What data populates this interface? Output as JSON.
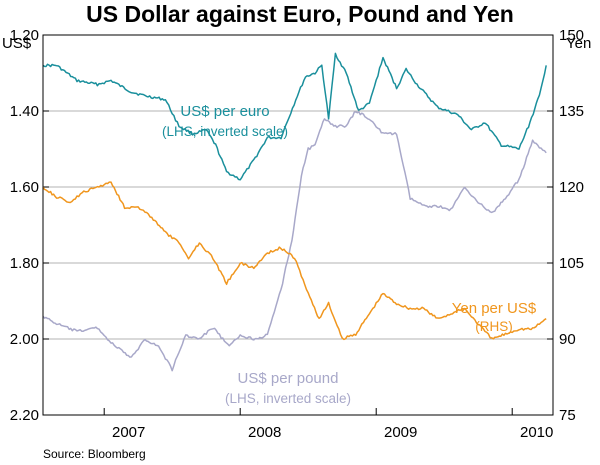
{
  "chart_data": {
    "type": "line",
    "title": "US Dollar against Euro, Pound and Yen",
    "source": "Source: Bloomberg",
    "left_axis": {
      "unit": "US$",
      "inverted": true,
      "range": [
        1.2,
        2.2
      ],
      "ticks": [
        1.2,
        1.4,
        1.6,
        1.8,
        2.0,
        2.2
      ],
      "tick_labels": [
        "1.20",
        "1.40",
        "1.60",
        "1.80",
        "2.00",
        "2.20"
      ]
    },
    "right_axis": {
      "unit": "Yen",
      "inverted": false,
      "range": [
        75,
        150
      ],
      "ticks": [
        75,
        90,
        105,
        120,
        135,
        150
      ],
      "tick_labels": [
        "75",
        "90",
        "105",
        "120",
        "135",
        "150"
      ]
    },
    "x_axis": {
      "range": [
        2006.55,
        2010.3
      ],
      "year_dividers": [
        2007,
        2008,
        2009,
        2010
      ],
      "labels": [
        {
          "text": "2007",
          "x": 2007.0
        },
        {
          "text": "2008",
          "x": 2008.0
        },
        {
          "text": "2009",
          "x": 2009.0
        },
        {
          "text": "2010",
          "x": 2010.0
        }
      ]
    },
    "annotations": {
      "euro": {
        "line1": "US$ per euro",
        "line2": "(LHS, inverted scale)"
      },
      "pound": {
        "line1": "US$ per pound",
        "line2": "(LHS, inverted scale)"
      },
      "yen": {
        "line1": "Yen per US$",
        "line2": "(RHS)"
      }
    },
    "series": [
      {
        "name": "US$ per euro",
        "axis": "left",
        "color": "#1a8f9c",
        "x": [
          2006.55,
          2006.65,
          2006.8,
          2006.95,
          2007.05,
          2007.2,
          2007.3,
          2007.45,
          2007.55,
          2007.65,
          2007.75,
          2007.82,
          2007.9,
          2008.0,
          2008.1,
          2008.2,
          2008.3,
          2008.42,
          2008.48,
          2008.55,
          2008.6,
          2008.65,
          2008.7,
          2008.78,
          2008.87,
          2008.95,
          2009.05,
          2009.15,
          2009.22,
          2009.3,
          2009.45,
          2009.6,
          2009.7,
          2009.8,
          2009.92,
          2010.05,
          2010.12,
          2010.2,
          2010.25
        ],
        "values": [
          1.28,
          1.28,
          1.32,
          1.33,
          1.32,
          1.35,
          1.36,
          1.37,
          1.44,
          1.46,
          1.45,
          1.49,
          1.56,
          1.58,
          1.53,
          1.47,
          1.47,
          1.36,
          1.31,
          1.3,
          1.28,
          1.42,
          1.25,
          1.3,
          1.4,
          1.38,
          1.26,
          1.34,
          1.29,
          1.33,
          1.39,
          1.41,
          1.45,
          1.43,
          1.49,
          1.5,
          1.44,
          1.36,
          1.28
        ]
      },
      {
        "name": "US$ per pound",
        "axis": "left",
        "color": "#a8a8c9",
        "x": [
          2006.55,
          2006.65,
          2006.8,
          2006.95,
          2007.05,
          2007.2,
          2007.3,
          2007.4,
          2007.5,
          2007.6,
          2007.7,
          2007.8,
          2007.92,
          2008.0,
          2008.1,
          2008.2,
          2008.3,
          2008.38,
          2008.45,
          2008.5,
          2008.55,
          2008.62,
          2008.7,
          2008.78,
          2008.85,
          2008.95,
          2009.05,
          2009.15,
          2009.25,
          2009.35,
          2009.45,
          2009.55,
          2009.65,
          2009.75,
          2009.85,
          2009.95,
          2010.05,
          2010.15,
          2010.25
        ],
        "values": [
          1.94,
          1.96,
          1.98,
          1.97,
          2.01,
          2.05,
          2.0,
          2.02,
          2.08,
          1.99,
          2.0,
          1.97,
          2.02,
          1.99,
          2.0,
          1.99,
          1.87,
          1.74,
          1.57,
          1.5,
          1.49,
          1.42,
          1.44,
          1.44,
          1.4,
          1.42,
          1.46,
          1.46,
          1.63,
          1.65,
          1.65,
          1.66,
          1.6,
          1.64,
          1.67,
          1.63,
          1.58,
          1.48,
          1.51
        ]
      },
      {
        "name": "Yen per US$",
        "axis": "right",
        "color": "#f0961e",
        "x": [
          2006.55,
          2006.65,
          2006.75,
          2006.85,
          2006.95,
          2007.05,
          2007.15,
          2007.25,
          2007.35,
          2007.45,
          2007.55,
          2007.62,
          2007.7,
          2007.8,
          2007.9,
          2008.0,
          2008.1,
          2008.2,
          2008.3,
          2008.4,
          2008.5,
          2008.58,
          2008.65,
          2008.75,
          2008.85,
          2008.95,
          2009.05,
          2009.15,
          2009.25,
          2009.35,
          2009.45,
          2009.55,
          2009.65,
          2009.75,
          2009.85,
          2009.95,
          2010.05,
          2010.15,
          2010.25
        ],
        "values": [
          120,
          118,
          117,
          119,
          120,
          121,
          116,
          116,
          114,
          111,
          109,
          106,
          109,
          106,
          101,
          105,
          104,
          107,
          108,
          106,
          99,
          94,
          97,
          90,
          91,
          95,
          99,
          97,
          96,
          96,
          94,
          95,
          96,
          93,
          90,
          91,
          92,
          92,
          94
        ]
      }
    ]
  }
}
